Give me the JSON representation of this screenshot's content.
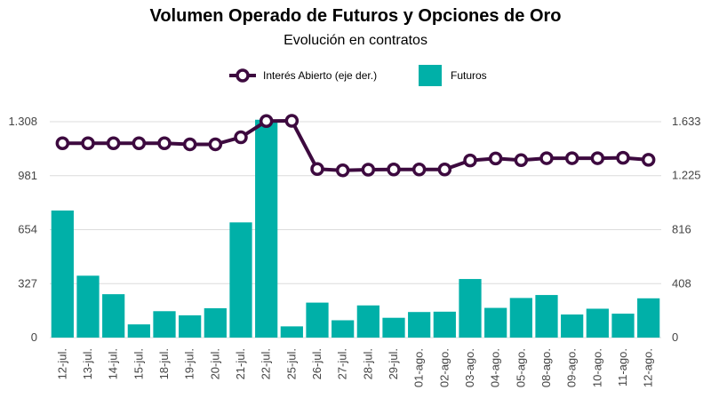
{
  "chart_data": {
    "type": "bar",
    "title": "Volumen Operado de Futuros y Opciones de Oro",
    "subtitle": "Evolución en contratos",
    "categories": [
      "12-jul.",
      "13-jul.",
      "14-jul.",
      "15-jul.",
      "18-jul.",
      "19-jul.",
      "20-jul.",
      "21-jul.",
      "22-jul.",
      "25-jul.",
      "26-jul.",
      "27-jul.",
      "28-jul.",
      "29-jul.",
      "01-ago.",
      "02-ago.",
      "03-ago.",
      "04-ago.",
      "05-ago.",
      "08-ago.",
      "09-ago.",
      "10-ago.",
      "11-ago.",
      "12-ago."
    ],
    "series": [
      {
        "name": "Futuros",
        "type": "bar",
        "axis": "left",
        "color": "#00b0a8",
        "values": [
          770,
          375,
          263,
          80,
          160,
          135,
          178,
          698,
          1320,
          68,
          212,
          105,
          195,
          120,
          155,
          157,
          355,
          180,
          240,
          258,
          140,
          175,
          145,
          238
        ]
      },
      {
        "name": "Interés Abierto (eje der.)",
        "type": "line",
        "axis": "right",
        "color": "#3d0a3f",
        "values": [
          1470,
          1470,
          1470,
          1470,
          1470,
          1462,
          1462,
          1515,
          1638,
          1640,
          1275,
          1265,
          1270,
          1272,
          1272,
          1272,
          1340,
          1355,
          1342,
          1357,
          1357,
          1357,
          1360,
          1345
        ]
      }
    ],
    "y_left": {
      "ticks": [
        "0",
        "327",
        "654",
        "981",
        "1.308"
      ],
      "tick_values": [
        0,
        327,
        654,
        981,
        1308
      ],
      "ylim": [
        0,
        1308
      ]
    },
    "y_right": {
      "ticks": [
        "0",
        "408",
        "816",
        "1.225",
        "1.633"
      ],
      "tick_values": [
        0,
        408,
        816,
        1225,
        1633
      ],
      "ylim": [
        0,
        1633
      ]
    },
    "legend": {
      "placement": "top-center",
      "items": [
        "Interés Abierto (eje der.)",
        "Futuros"
      ]
    },
    "grid": true
  }
}
